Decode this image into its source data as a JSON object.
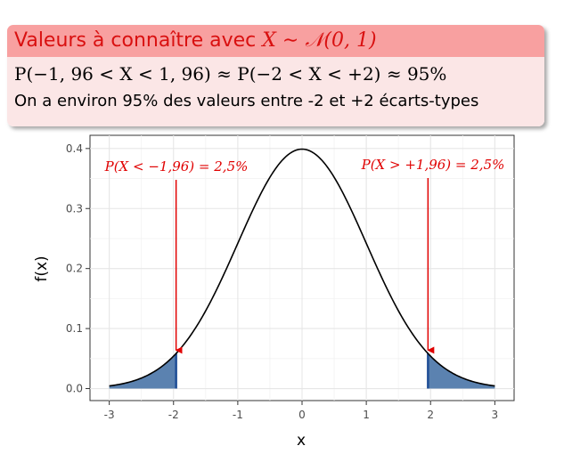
{
  "block": {
    "title_prefix": "Valeurs à connaître avec ",
    "title_math": "X ∼ 𝒩(0, 1)",
    "formula": "P(−1, 96 < X < 1, 96) ≈ P(−2 < X < +2) ≈ 95%",
    "sentence": "On a environ 95% des valeurs entre -2 et +2 écarts-types"
  },
  "colors": {
    "block_title_bg": "#f8a0a0",
    "block_title_text": "#d91010",
    "block_body_bg": "#fbe6e6",
    "curve": "#000000",
    "tail_fill": "#5b82b0",
    "tail_edge": "#1f4e96",
    "arrow": "#e00000",
    "panel_bg": "#ffffff",
    "grid": "#e6e6e6"
  },
  "chart_data": {
    "type": "area",
    "title": "",
    "xlabel": "x",
    "ylabel": "f(x)",
    "xlim": [
      -3,
      3
    ],
    "ylim": [
      0,
      0.4
    ],
    "xticks": [
      -3,
      -2,
      -1,
      0,
      1,
      2,
      3
    ],
    "xtick_labels": [
      "-3",
      "-2",
      "-1",
      "0",
      "1",
      "2",
      "3"
    ],
    "yticks": [
      0,
      0.1,
      0.2,
      0.3,
      0.4
    ],
    "ytick_labels": [
      "0.0",
      "0.1",
      "0.2",
      "0.3",
      "0.4"
    ],
    "series": [
      {
        "type": "line",
        "function": "standard normal density",
        "mean": 0,
        "sd": 1,
        "x_range": [
          -3,
          3
        ]
      }
    ],
    "shaded_regions": [
      {
        "x_from": -3,
        "x_to": -1.96
      },
      {
        "x_from": 1.96,
        "x_to": 3
      }
    ],
    "annotations": [
      {
        "text": "P(X < −1,96) = 2,5%",
        "arrow_to_x": -1.96,
        "arrow_to_y": 0.058
      },
      {
        "text": "P(X > +1,96) = 2,5%",
        "arrow_to_x": 1.96,
        "arrow_to_y": 0.058
      }
    ],
    "grid": true,
    "legend": "none"
  }
}
